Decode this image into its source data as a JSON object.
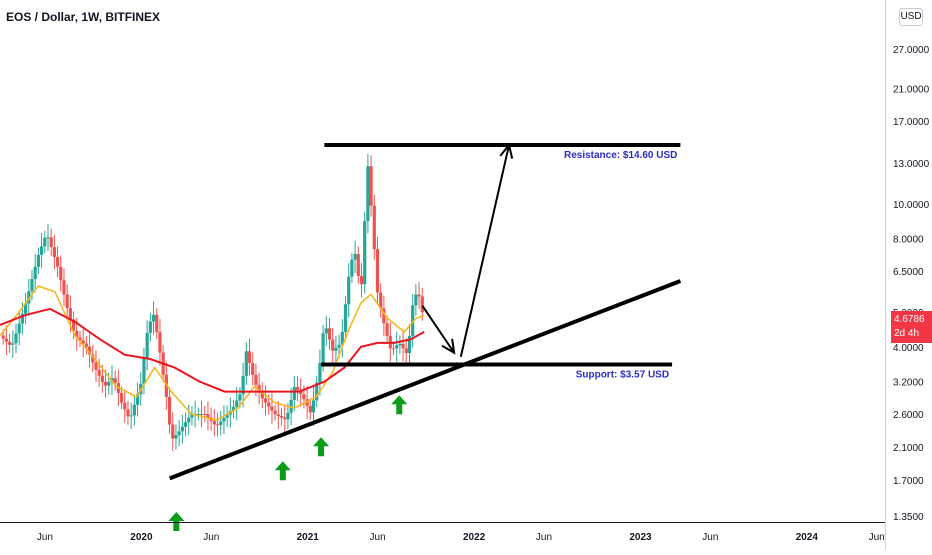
{
  "header": {
    "symbol_title": "EOS / Dollar, 1W, BITFINEX",
    "currency_button": "USD"
  },
  "price_tag": {
    "price": "4.6786",
    "countdown": "2d 4h",
    "color": "#f23645"
  },
  "colors": {
    "bull": "#26a69a",
    "bear": "#ef5350",
    "ema_fast": "#f6b820",
    "ema_slow": "#e8171f",
    "annotation_text": "#2b2bc8",
    "arrow_up": "#0a9b17",
    "trendline": "#000000"
  },
  "chart_data": {
    "type": "candlestick",
    "title": "EOS / Dollar, 1W, BITFINEX",
    "scale": "log",
    "ylim": [
      1.3,
      37
    ],
    "price_ticks": [
      "27.0000",
      "21.0000",
      "17.0000",
      "13.0000",
      "10.0000",
      "8.0000",
      "6.5000",
      "5.0000",
      "4.0000",
      "3.2000",
      "2.6000",
      "2.1000",
      "1.7000",
      "1.3500"
    ],
    "price_tick_values": [
      27,
      21,
      17,
      13,
      10,
      8,
      6.5,
      5,
      4,
      3.2,
      2.6,
      2.1,
      1.7,
      1.35
    ],
    "time_ticks": [
      {
        "label": "Jun",
        "t": 2019.42
      },
      {
        "label": "2020",
        "t": 2020.0
      },
      {
        "label": "Jun",
        "t": 2020.42
      },
      {
        "label": "2021",
        "t": 2021.0
      },
      {
        "label": "Jun",
        "t": 2021.42
      },
      {
        "label": "2022",
        "t": 2022.0
      },
      {
        "label": "Jun",
        "t": 2022.42
      },
      {
        "label": "2023",
        "t": 2023.0
      },
      {
        "label": "Jun",
        "t": 2023.42
      },
      {
        "label": "2024",
        "t": 2024.0
      },
      {
        "label": "Jun",
        "t": 2024.42
      }
    ],
    "xlim": [
      2019.15,
      2024.47
    ],
    "series_path": [
      [
        2019.15,
        4.3
      ],
      [
        2019.22,
        4.0
      ],
      [
        2019.3,
        5.2
      ],
      [
        2019.38,
        7.2
      ],
      [
        2019.43,
        8.3
      ],
      [
        2019.5,
        6.6
      ],
      [
        2019.55,
        5.2
      ],
      [
        2019.6,
        4.3
      ],
      [
        2019.67,
        4.0
      ],
      [
        2019.72,
        3.5
      ],
      [
        2019.78,
        3.1
      ],
      [
        2019.83,
        3.3
      ],
      [
        2019.88,
        2.8
      ],
      [
        2019.93,
        2.5
      ],
      [
        2020.0,
        3.2
      ],
      [
        2020.03,
        4.3
      ],
      [
        2020.07,
        5.0
      ],
      [
        2020.1,
        4.2
      ],
      [
        2020.15,
        2.9
      ],
      [
        2020.18,
        2.2
      ],
      [
        2020.22,
        2.3
      ],
      [
        2020.3,
        2.6
      ],
      [
        2020.38,
        2.6
      ],
      [
        2020.45,
        2.4
      ],
      [
        2020.55,
        2.7
      ],
      [
        2020.6,
        3.0
      ],
      [
        2020.63,
        3.9
      ],
      [
        2020.68,
        3.2
      ],
      [
        2020.72,
        2.9
      ],
      [
        2020.8,
        2.6
      ],
      [
        2020.87,
        2.5
      ],
      [
        2020.92,
        3.1
      ],
      [
        2020.97,
        2.9
      ],
      [
        2021.02,
        2.6
      ],
      [
        2021.07,
        3.5
      ],
      [
        2021.1,
        4.7
      ],
      [
        2021.15,
        3.9
      ],
      [
        2021.2,
        4.1
      ],
      [
        2021.25,
        6.5
      ],
      [
        2021.28,
        7.5
      ],
      [
        2021.32,
        5.6
      ],
      [
        2021.36,
        13.0
      ],
      [
        2021.38,
        10.0
      ],
      [
        2021.42,
        5.6
      ],
      [
        2021.46,
        4.6
      ],
      [
        2021.5,
        3.9
      ],
      [
        2021.55,
        4.1
      ],
      [
        2021.6,
        3.8
      ],
      [
        2021.63,
        5.2
      ],
      [
        2021.66,
        5.8
      ],
      [
        2021.7,
        4.7
      ]
    ],
    "ema_fast_path": [
      [
        2019.15,
        4.3
      ],
      [
        2019.25,
        4.9
      ],
      [
        2019.38,
        5.9
      ],
      [
        2019.48,
        5.7
      ],
      [
        2019.6,
        4.3
      ],
      [
        2019.72,
        3.7
      ],
      [
        2019.85,
        3.1
      ],
      [
        2019.97,
        2.9
      ],
      [
        2020.08,
        3.5
      ],
      [
        2020.18,
        3.0
      ],
      [
        2020.3,
        2.6
      ],
      [
        2020.45,
        2.5
      ],
      [
        2020.58,
        2.7
      ],
      [
        2020.68,
        3.1
      ],
      [
        2020.8,
        2.8
      ],
      [
        2020.92,
        2.7
      ],
      [
        2021.05,
        2.9
      ],
      [
        2021.15,
        3.4
      ],
      [
        2021.25,
        4.5
      ],
      [
        2021.32,
        5.3
      ],
      [
        2021.38,
        5.6
      ],
      [
        2021.48,
        4.8
      ],
      [
        2021.58,
        4.4
      ],
      [
        2021.65,
        4.8
      ],
      [
        2021.7,
        4.9
      ]
    ],
    "ema_slow_path": [
      [
        2019.15,
        4.6
      ],
      [
        2019.3,
        4.9
      ],
      [
        2019.45,
        5.1
      ],
      [
        2019.6,
        4.7
      ],
      [
        2019.75,
        4.2
      ],
      [
        2019.9,
        3.8
      ],
      [
        2020.05,
        3.7
      ],
      [
        2020.2,
        3.5
      ],
      [
        2020.35,
        3.2
      ],
      [
        2020.5,
        3.0
      ],
      [
        2020.65,
        3.0
      ],
      [
        2020.8,
        3.0
      ],
      [
        2020.95,
        3.0
      ],
      [
        2021.1,
        3.2
      ],
      [
        2021.22,
        3.5
      ],
      [
        2021.32,
        4.0
      ],
      [
        2021.42,
        4.1
      ],
      [
        2021.52,
        4.1
      ],
      [
        2021.62,
        4.2
      ],
      [
        2021.7,
        4.4
      ]
    ],
    "annotations": [
      {
        "kind": "hline",
        "label": "Resistance: $14.60 USD",
        "price": 14.6,
        "t_start": 2021.1,
        "t_end": 2023.24
      },
      {
        "kind": "hline",
        "label": "Support: $3.57 USD",
        "price": 3.57,
        "t_start": 2021.08,
        "t_end": 2023.19
      },
      {
        "kind": "trendline",
        "from": [
          2020.17,
          1.72
        ],
        "to": [
          2023.24,
          6.1
        ]
      },
      {
        "kind": "arrow",
        "from": [
          2021.69,
          5.2
        ],
        "to": [
          2021.88,
          3.85
        ]
      },
      {
        "kind": "arrow",
        "from": [
          2021.92,
          3.75
        ],
        "to": [
          2022.21,
          14.6
        ]
      },
      {
        "kind": "up-arrow",
        "at": [
          2020.85,
          1.8
        ]
      },
      {
        "kind": "up-arrow",
        "at": [
          2021.08,
          2.1
        ]
      },
      {
        "kind": "up-arrow",
        "at": [
          2021.55,
          2.75
        ]
      },
      {
        "kind": "up-arrow",
        "at": [
          2020.21,
          1.3
        ]
      }
    ]
  }
}
